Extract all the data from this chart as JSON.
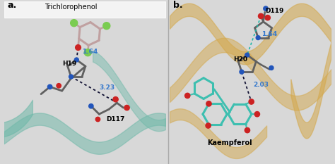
{
  "fig_width": 4.74,
  "fig_height": 2.33,
  "dpi": 100,
  "border_color": "#d8d8d8",
  "panel_a": {
    "label": "a.",
    "title": "Trichlorophenol",
    "bg": "#f5f5f5",
    "teal": "#6db8a8",
    "ligand_color": "#c0a0a0",
    "cl_color": "#7acc50",
    "o_color": "#cc2222",
    "n_color": "#2255bb",
    "c_color": "#606060",
    "bond_color": "#111133",
    "dist_color": "#3377cc",
    "h19_label": "H19",
    "d117_label": "D117",
    "dist1": "1.64",
    "dist2": "3.23"
  },
  "panel_b": {
    "label": "b.",
    "title": "Kaempferol",
    "bg": "#faf8f2",
    "gold": "#d4a84b",
    "ligand_color": "#3dbfb0",
    "o_color": "#cc2222",
    "n_color": "#2255bb",
    "c_color": "#606060",
    "bond_color": "#111133",
    "dist_color": "#3377cc",
    "teal_dash": "#20b8a8",
    "h20_label": "H20",
    "d119_label": "D119",
    "dist1": "1.64",
    "dist2": "2.03"
  }
}
